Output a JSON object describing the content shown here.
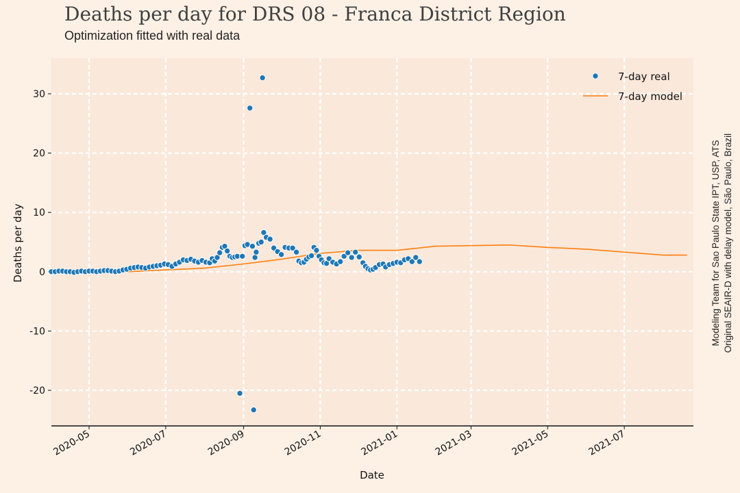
{
  "title": "Deaths per day for DRS 08 - Franca District Region",
  "subtitle": "Optimization fitted with real data",
  "credit": {
    "line1": "Modeling Team for Sao Paulo State IPT, USP, ATS",
    "line2": "Original SEAIR-D with delay model, São Paulo, Brazil"
  },
  "colors": {
    "background": "#fdf1e6",
    "plot_bg": "#fae8db",
    "grid": "#ffffff",
    "real": "#1f77b4",
    "model": "#ff7f0e"
  },
  "chart_data": {
    "type": "scatter",
    "xlabel": "Date",
    "ylabel": "Deaths per day",
    "xlim": [
      "2020-04-01",
      "2021-08-25"
    ],
    "ylim": [
      -26,
      36
    ],
    "y_ticks": [
      -20,
      -10,
      0,
      10,
      20,
      30
    ],
    "y_tick_labels": [
      "-20",
      "-10",
      "0",
      "10",
      "20",
      "30"
    ],
    "x_ticks": [
      "2020-05-01",
      "2020-07-01",
      "2020-09-01",
      "2020-11-01",
      "2021-01-01",
      "2021-03-01",
      "2021-05-01",
      "2021-07-01"
    ],
    "x_tick_labels": [
      "2020-05",
      "2020-07",
      "2020-09",
      "2020-11",
      "2021-01",
      "2021-03",
      "2021-05",
      "2021-07"
    ],
    "grid": true,
    "legend": {
      "position": "top-right",
      "entries": [
        "7-day real",
        "7-day model"
      ]
    },
    "series": [
      {
        "name": "7-day real",
        "kind": "scatter",
        "points": [
          [
            "2020-04-01",
            0
          ],
          [
            "2020-04-04",
            0
          ],
          [
            "2020-04-07",
            0.1
          ],
          [
            "2020-04-10",
            0.1
          ],
          [
            "2020-04-13",
            0
          ],
          [
            "2020-04-16",
            0
          ],
          [
            "2020-04-19",
            -0.1
          ],
          [
            "2020-04-22",
            0
          ],
          [
            "2020-04-25",
            0.1
          ],
          [
            "2020-04-28",
            0
          ],
          [
            "2020-05-01",
            0.1
          ],
          [
            "2020-05-04",
            0.1
          ],
          [
            "2020-05-07",
            0
          ],
          [
            "2020-05-10",
            0.1
          ],
          [
            "2020-05-13",
            0.2
          ],
          [
            "2020-05-16",
            0.2
          ],
          [
            "2020-05-19",
            0.1
          ],
          [
            "2020-05-22",
            0
          ],
          [
            "2020-05-25",
            0.1
          ],
          [
            "2020-05-28",
            0.3
          ],
          [
            "2020-05-31",
            0.4
          ],
          [
            "2020-06-03",
            0.6
          ],
          [
            "2020-06-06",
            0.7
          ],
          [
            "2020-06-09",
            0.8
          ],
          [
            "2020-06-12",
            0.7
          ],
          [
            "2020-06-15",
            0.6
          ],
          [
            "2020-06-18",
            0.8
          ],
          [
            "2020-06-21",
            0.9
          ],
          [
            "2020-06-24",
            1.0
          ],
          [
            "2020-06-27",
            1.1
          ],
          [
            "2020-06-30",
            1.3
          ],
          [
            "2020-07-03",
            1.2
          ],
          [
            "2020-07-06",
            0.9
          ],
          [
            "2020-07-09",
            1.3
          ],
          [
            "2020-07-12",
            1.6
          ],
          [
            "2020-07-15",
            2.0
          ],
          [
            "2020-07-18",
            1.9
          ],
          [
            "2020-07-21",
            2.1
          ],
          [
            "2020-07-24",
            1.8
          ],
          [
            "2020-07-27",
            1.6
          ],
          [
            "2020-07-30",
            1.9
          ],
          [
            "2020-08-02",
            1.6
          ],
          [
            "2020-08-05",
            1.5
          ],
          [
            "2020-08-07",
            2.2
          ],
          [
            "2020-08-09",
            1.8
          ],
          [
            "2020-08-11",
            2.4
          ],
          [
            "2020-08-13",
            3.2
          ],
          [
            "2020-08-15",
            4.1
          ],
          [
            "2020-08-17",
            4.3
          ],
          [
            "2020-08-19",
            3.5
          ],
          [
            "2020-08-21",
            2.6
          ],
          [
            "2020-08-23",
            2.4
          ],
          [
            "2020-08-25",
            2.5
          ],
          [
            "2020-08-27",
            2.6
          ],
          [
            "2020-08-29",
            -20.5
          ],
          [
            "2020-08-31",
            2.6
          ],
          [
            "2020-09-02",
            4.4
          ],
          [
            "2020-09-04",
            4.6
          ],
          [
            "2020-09-06",
            27.6
          ],
          [
            "2020-09-08",
            4.3
          ],
          [
            "2020-09-09",
            -23.3
          ],
          [
            "2020-09-10",
            2.4
          ],
          [
            "2020-09-11",
            3.3
          ],
          [
            "2020-09-13",
            4.8
          ],
          [
            "2020-09-15",
            5.0
          ],
          [
            "2020-09-16",
            32.7
          ],
          [
            "2020-09-17",
            6.6
          ],
          [
            "2020-09-19",
            5.8
          ],
          [
            "2020-09-22",
            5.5
          ],
          [
            "2020-09-25",
            4.0
          ],
          [
            "2020-09-28",
            3.4
          ],
          [
            "2020-10-01",
            2.9
          ],
          [
            "2020-10-04",
            4.1
          ],
          [
            "2020-10-07",
            4.0
          ],
          [
            "2020-10-10",
            4.0
          ],
          [
            "2020-10-13",
            3.3
          ],
          [
            "2020-10-15",
            1.8
          ],
          [
            "2020-10-17",
            1.5
          ],
          [
            "2020-10-19",
            1.6
          ],
          [
            "2020-10-21",
            2.1
          ],
          [
            "2020-10-23",
            2.5
          ],
          [
            "2020-10-25",
            2.7
          ],
          [
            "2020-10-27",
            4.1
          ],
          [
            "2020-10-29",
            3.6
          ],
          [
            "2020-10-31",
            2.6
          ],
          [
            "2020-11-02",
            2.0
          ],
          [
            "2020-11-04",
            1.5
          ],
          [
            "2020-11-06",
            1.4
          ],
          [
            "2020-11-08",
            2.2
          ],
          [
            "2020-11-11",
            1.6
          ],
          [
            "2020-11-14",
            1.3
          ],
          [
            "2020-11-17",
            1.7
          ],
          [
            "2020-11-20",
            2.6
          ],
          [
            "2020-11-23",
            3.2
          ],
          [
            "2020-11-26",
            2.4
          ],
          [
            "2020-11-29",
            3.3
          ],
          [
            "2020-12-02",
            2.5
          ],
          [
            "2020-12-05",
            1.5
          ],
          [
            "2020-12-07",
            0.9
          ],
          [
            "2020-12-09",
            0.5
          ],
          [
            "2020-12-11",
            0.3
          ],
          [
            "2020-12-13",
            0.4
          ],
          [
            "2020-12-15",
            0.7
          ],
          [
            "2020-12-18",
            1.2
          ],
          [
            "2020-12-21",
            1.3
          ],
          [
            "2020-12-23",
            0.8
          ],
          [
            "2020-12-26",
            1.2
          ],
          [
            "2020-12-29",
            1.4
          ],
          [
            "2021-01-01",
            1.6
          ],
          [
            "2021-01-04",
            1.5
          ],
          [
            "2021-01-07",
            2.0
          ],
          [
            "2021-01-10",
            2.2
          ],
          [
            "2021-01-13",
            1.7
          ],
          [
            "2021-01-16",
            2.4
          ],
          [
            "2021-01-19",
            1.7
          ]
        ]
      },
      {
        "name": "7-day model",
        "kind": "line",
        "points": [
          [
            "2020-04-01",
            0
          ],
          [
            "2020-05-01",
            0
          ],
          [
            "2020-06-01",
            0
          ],
          [
            "2020-07-01",
            0.3
          ],
          [
            "2020-08-01",
            0.6
          ],
          [
            "2020-09-01",
            1.3
          ],
          [
            "2020-10-01",
            2.1
          ],
          [
            "2020-11-01",
            3.1
          ],
          [
            "2020-12-01",
            3.6
          ],
          [
            "2021-01-01",
            3.6
          ],
          [
            "2021-02-01",
            4.3
          ],
          [
            "2021-03-01",
            4.4
          ],
          [
            "2021-04-01",
            4.5
          ],
          [
            "2021-05-01",
            4.1
          ],
          [
            "2021-06-01",
            3.8
          ],
          [
            "2021-07-01",
            3.3
          ],
          [
            "2021-08-01",
            2.8
          ],
          [
            "2021-08-20",
            2.8
          ]
        ]
      }
    ]
  }
}
